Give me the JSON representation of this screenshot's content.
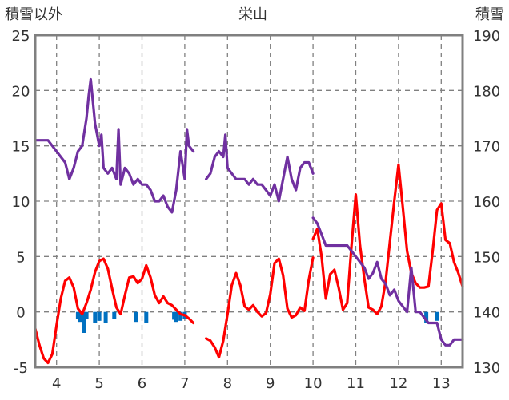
{
  "chart_data": {
    "type": "line",
    "title": "栄山",
    "left_axis_label": "積雪以外",
    "right_axis_label": "積雪",
    "x_range": [
      3.5,
      13.5
    ],
    "x_ticks": [
      "4",
      "5",
      "6",
      "7",
      "8",
      "9",
      "10",
      "11",
      "12",
      "13"
    ],
    "left_ylim": [
      -5,
      25
    ],
    "left_ticks": [
      "-5",
      "0",
      "5",
      "10",
      "15",
      "20",
      "25"
    ],
    "right_ylim": [
      130,
      190
    ],
    "right_ticks": [
      "130",
      "140",
      "150",
      "160",
      "170",
      "180",
      "190"
    ],
    "grid": true,
    "colors": {
      "temperature": "#ff0000",
      "snow_depth": "#7030a0",
      "precipitation": "#0070c0",
      "frame": "#808080",
      "grid": "#808080"
    },
    "series": [
      {
        "axis": "left",
        "style": "line",
        "color_key": "temperature",
        "segments": [
          [
            [
              3.5,
              -1.5
            ],
            [
              3.6,
              -3.0
            ],
            [
              3.7,
              -4.2
            ],
            [
              3.8,
              -4.6
            ],
            [
              3.9,
              -3.8
            ],
            [
              4.0,
              -1.2
            ],
            [
              4.1,
              1.2
            ],
            [
              4.2,
              2.8
            ],
            [
              4.3,
              3.1
            ],
            [
              4.4,
              2.2
            ],
            [
              4.5,
              0.3
            ],
            [
              4.6,
              -0.2
            ],
            [
              4.7,
              0.8
            ],
            [
              4.8,
              2.0
            ],
            [
              4.9,
              3.6
            ],
            [
              5.0,
              4.6
            ],
            [
              5.1,
              4.8
            ],
            [
              5.2,
              3.9
            ],
            [
              5.3,
              2.1
            ],
            [
              5.4,
              0.4
            ],
            [
              5.5,
              -0.2
            ],
            [
              5.6,
              1.5
            ],
            [
              5.7,
              3.1
            ],
            [
              5.8,
              3.2
            ],
            [
              5.9,
              2.6
            ],
            [
              6.0,
              3.0
            ],
            [
              6.1,
              4.2
            ],
            [
              6.2,
              3.1
            ],
            [
              6.3,
              1.5
            ],
            [
              6.4,
              0.8
            ],
            [
              6.5,
              1.4
            ],
            [
              6.6,
              0.8
            ],
            [
              6.7,
              0.6
            ],
            [
              6.8,
              0.2
            ],
            [
              6.9,
              -0.2
            ],
            [
              7.0,
              -0.3
            ],
            [
              7.1,
              -0.6
            ],
            [
              7.2,
              -1.0
            ]
          ],
          [
            [
              7.5,
              -2.4
            ],
            [
              7.6,
              -2.6
            ],
            [
              7.7,
              -3.2
            ],
            [
              7.8,
              -4.1
            ],
            [
              7.9,
              -2.6
            ],
            [
              8.0,
              -0.2
            ],
            [
              8.1,
              2.4
            ],
            [
              8.2,
              3.5
            ],
            [
              8.3,
              2.4
            ],
            [
              8.4,
              0.5
            ],
            [
              8.5,
              0.2
            ],
            [
              8.6,
              0.6
            ],
            [
              8.7,
              0.0
            ],
            [
              8.8,
              -0.4
            ],
            [
              8.9,
              -0.1
            ],
            [
              9.0,
              1.6
            ],
            [
              9.1,
              4.4
            ],
            [
              9.2,
              4.8
            ],
            [
              9.3,
              3.3
            ],
            [
              9.4,
              0.3
            ],
            [
              9.5,
              -0.5
            ],
            [
              9.6,
              -0.3
            ],
            [
              9.7,
              0.4
            ],
            [
              9.8,
              0.1
            ],
            [
              9.9,
              2.9
            ],
            [
              10.0,
              4.9
            ]
          ],
          [
            [
              10.0,
              6.6
            ],
            [
              10.1,
              7.5
            ],
            [
              10.2,
              5.0
            ],
            [
              10.3,
              1.2
            ],
            [
              10.4,
              3.4
            ],
            [
              10.5,
              3.8
            ],
            [
              10.6,
              2.2
            ],
            [
              10.7,
              0.2
            ],
            [
              10.8,
              0.8
            ],
            [
              10.9,
              6.0
            ],
            [
              11.0,
              10.6
            ],
            [
              11.1,
              6.0
            ],
            [
              11.2,
              3.0
            ],
            [
              11.3,
              0.4
            ],
            [
              11.4,
              0.2
            ],
            [
              11.5,
              -0.2
            ],
            [
              11.6,
              0.5
            ],
            [
              11.7,
              2.8
            ],
            [
              11.8,
              6.4
            ],
            [
              11.9,
              10.0
            ],
            [
              12.0,
              13.3
            ],
            [
              12.1,
              9.5
            ],
            [
              12.2,
              5.5
            ],
            [
              12.3,
              3.5
            ],
            [
              12.4,
              2.6
            ],
            [
              12.5,
              2.2
            ],
            [
              12.6,
              2.2
            ],
            [
              12.7,
              2.3
            ],
            [
              12.8,
              5.5
            ],
            [
              12.9,
              9.2
            ],
            [
              13.0,
              9.8
            ],
            [
              13.1,
              6.5
            ],
            [
              13.2,
              6.2
            ],
            [
              13.3,
              4.5
            ],
            [
              13.4,
              3.5
            ],
            [
              13.5,
              2.3
            ]
          ]
        ]
      },
      {
        "axis": "right",
        "style": "line",
        "color_key": "snow_depth",
        "segments": [
          [
            [
              3.5,
              171
            ],
            [
              3.6,
              171
            ],
            [
              3.7,
              171
            ],
            [
              3.8,
              171
            ],
            [
              3.9,
              170
            ],
            [
              4.0,
              169
            ],
            [
              4.1,
              168
            ],
            [
              4.2,
              167
            ],
            [
              4.3,
              164
            ],
            [
              4.4,
              166
            ],
            [
              4.5,
              169
            ],
            [
              4.6,
              170
            ],
            [
              4.7,
              175
            ],
            [
              4.75,
              179
            ],
            [
              4.8,
              182
            ],
            [
              4.85,
              178
            ],
            [
              4.9,
              174
            ],
            [
              5.0,
              170
            ],
            [
              5.05,
              172
            ],
            [
              5.1,
              166
            ],
            [
              5.2,
              165
            ],
            [
              5.3,
              166
            ],
            [
              5.4,
              164
            ],
            [
              5.45,
              173
            ],
            [
              5.5,
              163
            ],
            [
              5.6,
              166
            ],
            [
              5.7,
              165
            ],
            [
              5.8,
              163
            ],
            [
              5.9,
              164
            ],
            [
              6.0,
              163
            ],
            [
              6.1,
              163
            ],
            [
              6.2,
              162
            ],
            [
              6.3,
              160
            ],
            [
              6.4,
              160
            ],
            [
              6.5,
              161
            ],
            [
              6.6,
              159
            ],
            [
              6.7,
              158
            ],
            [
              6.8,
              162
            ],
            [
              6.9,
              169
            ],
            [
              7.0,
              164
            ],
            [
              7.05,
              173
            ],
            [
              7.1,
              170
            ],
            [
              7.2,
              169
            ]
          ],
          [
            [
              7.5,
              164
            ],
            [
              7.6,
              165
            ],
            [
              7.7,
              168
            ],
            [
              7.8,
              169
            ],
            [
              7.9,
              168
            ],
            [
              7.95,
              172
            ],
            [
              8.0,
              166
            ],
            [
              8.1,
              165
            ],
            [
              8.2,
              164
            ],
            [
              8.3,
              164
            ],
            [
              8.4,
              164
            ],
            [
              8.5,
              163
            ],
            [
              8.6,
              164
            ],
            [
              8.7,
              163
            ],
            [
              8.8,
              163
            ],
            [
              8.9,
              162
            ],
            [
              9.0,
              161
            ],
            [
              9.1,
              163
            ],
            [
              9.2,
              160
            ],
            [
              9.3,
              164
            ],
            [
              9.4,
              168
            ],
            [
              9.5,
              164
            ],
            [
              9.6,
              162
            ],
            [
              9.7,
              166
            ],
            [
              9.8,
              167
            ],
            [
              9.9,
              167
            ],
            [
              10.0,
              165
            ]
          ],
          [
            [
              10.0,
              157
            ],
            [
              10.1,
              156
            ],
            [
              10.2,
              154
            ],
            [
              10.3,
              152
            ],
            [
              10.4,
              152
            ],
            [
              10.5,
              152
            ],
            [
              10.6,
              152
            ],
            [
              10.7,
              152
            ],
            [
              10.8,
              152
            ],
            [
              10.9,
              151
            ],
            [
              11.0,
              150
            ],
            [
              11.1,
              149
            ],
            [
              11.2,
              148
            ],
            [
              11.3,
              146
            ],
            [
              11.4,
              147
            ],
            [
              11.5,
              149
            ],
            [
              11.6,
              146
            ],
            [
              11.7,
              145
            ],
            [
              11.8,
              143
            ],
            [
              11.9,
              144
            ],
            [
              12.0,
              142
            ],
            [
              12.1,
              141
            ],
            [
              12.2,
              140
            ],
            [
              12.3,
              148
            ],
            [
              12.4,
              140
            ],
            [
              12.5,
              140
            ],
            [
              12.6,
              139
            ],
            [
              12.7,
              138
            ],
            [
              12.8,
              138
            ],
            [
              12.9,
              138
            ],
            [
              13.0,
              135
            ],
            [
              13.1,
              134
            ],
            [
              13.2,
              134
            ],
            [
              13.3,
              135
            ],
            [
              13.4,
              135
            ],
            [
              13.5,
              135
            ]
          ]
        ]
      },
      {
        "axis": "left",
        "style": "bars",
        "color_key": "precipitation",
        "points": [
          [
            4.5,
            -0.6
          ],
          [
            4.55,
            -0.9
          ],
          [
            4.6,
            -0.5
          ],
          [
            4.65,
            -1.9
          ],
          [
            4.7,
            -0.6
          ],
          [
            4.9,
            -1.0
          ],
          [
            5.0,
            -0.8
          ],
          [
            5.15,
            -1.0
          ],
          [
            5.35,
            -0.6
          ],
          [
            5.85,
            -0.9
          ],
          [
            6.1,
            -1.0
          ],
          [
            6.75,
            -0.7
          ],
          [
            6.8,
            -0.9
          ],
          [
            6.9,
            -0.8
          ],
          [
            7.0,
            -0.6
          ],
          [
            12.65,
            -1.0
          ],
          [
            12.9,
            -0.8
          ]
        ]
      }
    ]
  }
}
